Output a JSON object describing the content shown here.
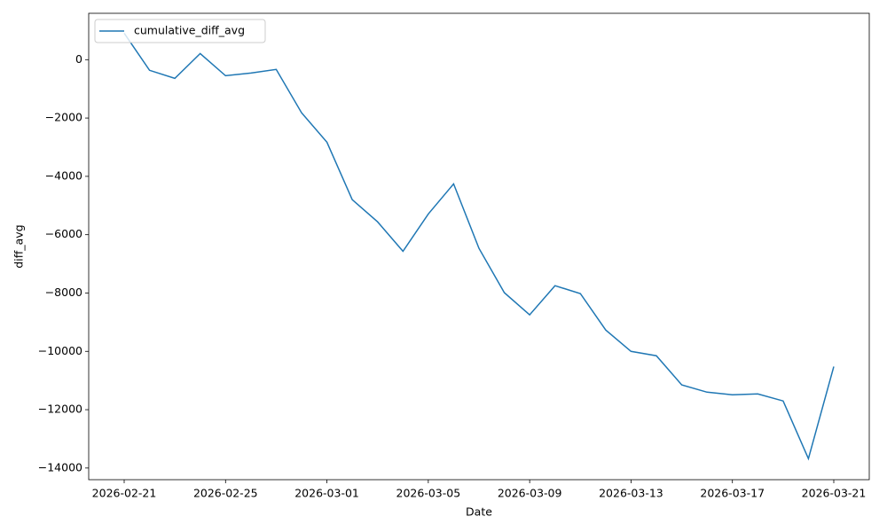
{
  "chart_data": {
    "type": "line",
    "x_label": "Date",
    "y_label": "diff_avg",
    "x": [
      "2026-02-21",
      "2026-02-22",
      "2026-02-23",
      "2026-02-24",
      "2026-02-25",
      "2026-02-26",
      "2026-02-27",
      "2026-02-28",
      "2026-03-01",
      "2026-03-02",
      "2026-03-03",
      "2026-03-04",
      "2026-03-05",
      "2026-03-06",
      "2026-03-07",
      "2026-03-08",
      "2026-03-09",
      "2026-03-10",
      "2026-03-11",
      "2026-03-12",
      "2026-03-13",
      "2026-03-14",
      "2026-03-15",
      "2026-03-16",
      "2026-03-17",
      "2026-03-18",
      "2026-03-19",
      "2026-03-20",
      "2026-03-21"
    ],
    "series": [
      {
        "name": "cumulative_diff_avg",
        "color": "#1f77b4",
        "values": [
          910,
          -365,
          -640,
          210,
          -550,
          -460,
          -335,
          -1820,
          -2830,
          -4800,
          -5560,
          -6570,
          -5290,
          -4260,
          -6470,
          -7990,
          -8750,
          -7750,
          -8020,
          -9270,
          -10000,
          -10150,
          -11150,
          -11400,
          -11490,
          -11460,
          -11700,
          -13680,
          -10520
        ]
      }
    ],
    "xlim": [
      "2026-02-19T14:24",
      "2026-03-22T09:36"
    ],
    "xticks": [
      "2026-02-21",
      "2026-02-25",
      "2026-03-01",
      "2026-03-05",
      "2026-03-09",
      "2026-03-13",
      "2026-03-17",
      "2026-03-21"
    ],
    "ylim": [
      -14400,
      1590
    ],
    "yticks": [
      0,
      {
        "value": -2000,
        "label": "−2000"
      },
      {
        "value": -4000,
        "label": "−4000"
      },
      {
        "value": -6000,
        "label": "−6000"
      },
      {
        "value": -8000,
        "label": "−8000"
      },
      {
        "value": -10000,
        "label": "−10000"
      },
      {
        "value": -12000,
        "label": "−12000"
      },
      {
        "value": -14000,
        "label": "−14000"
      }
    ],
    "legend": "upper left"
  }
}
